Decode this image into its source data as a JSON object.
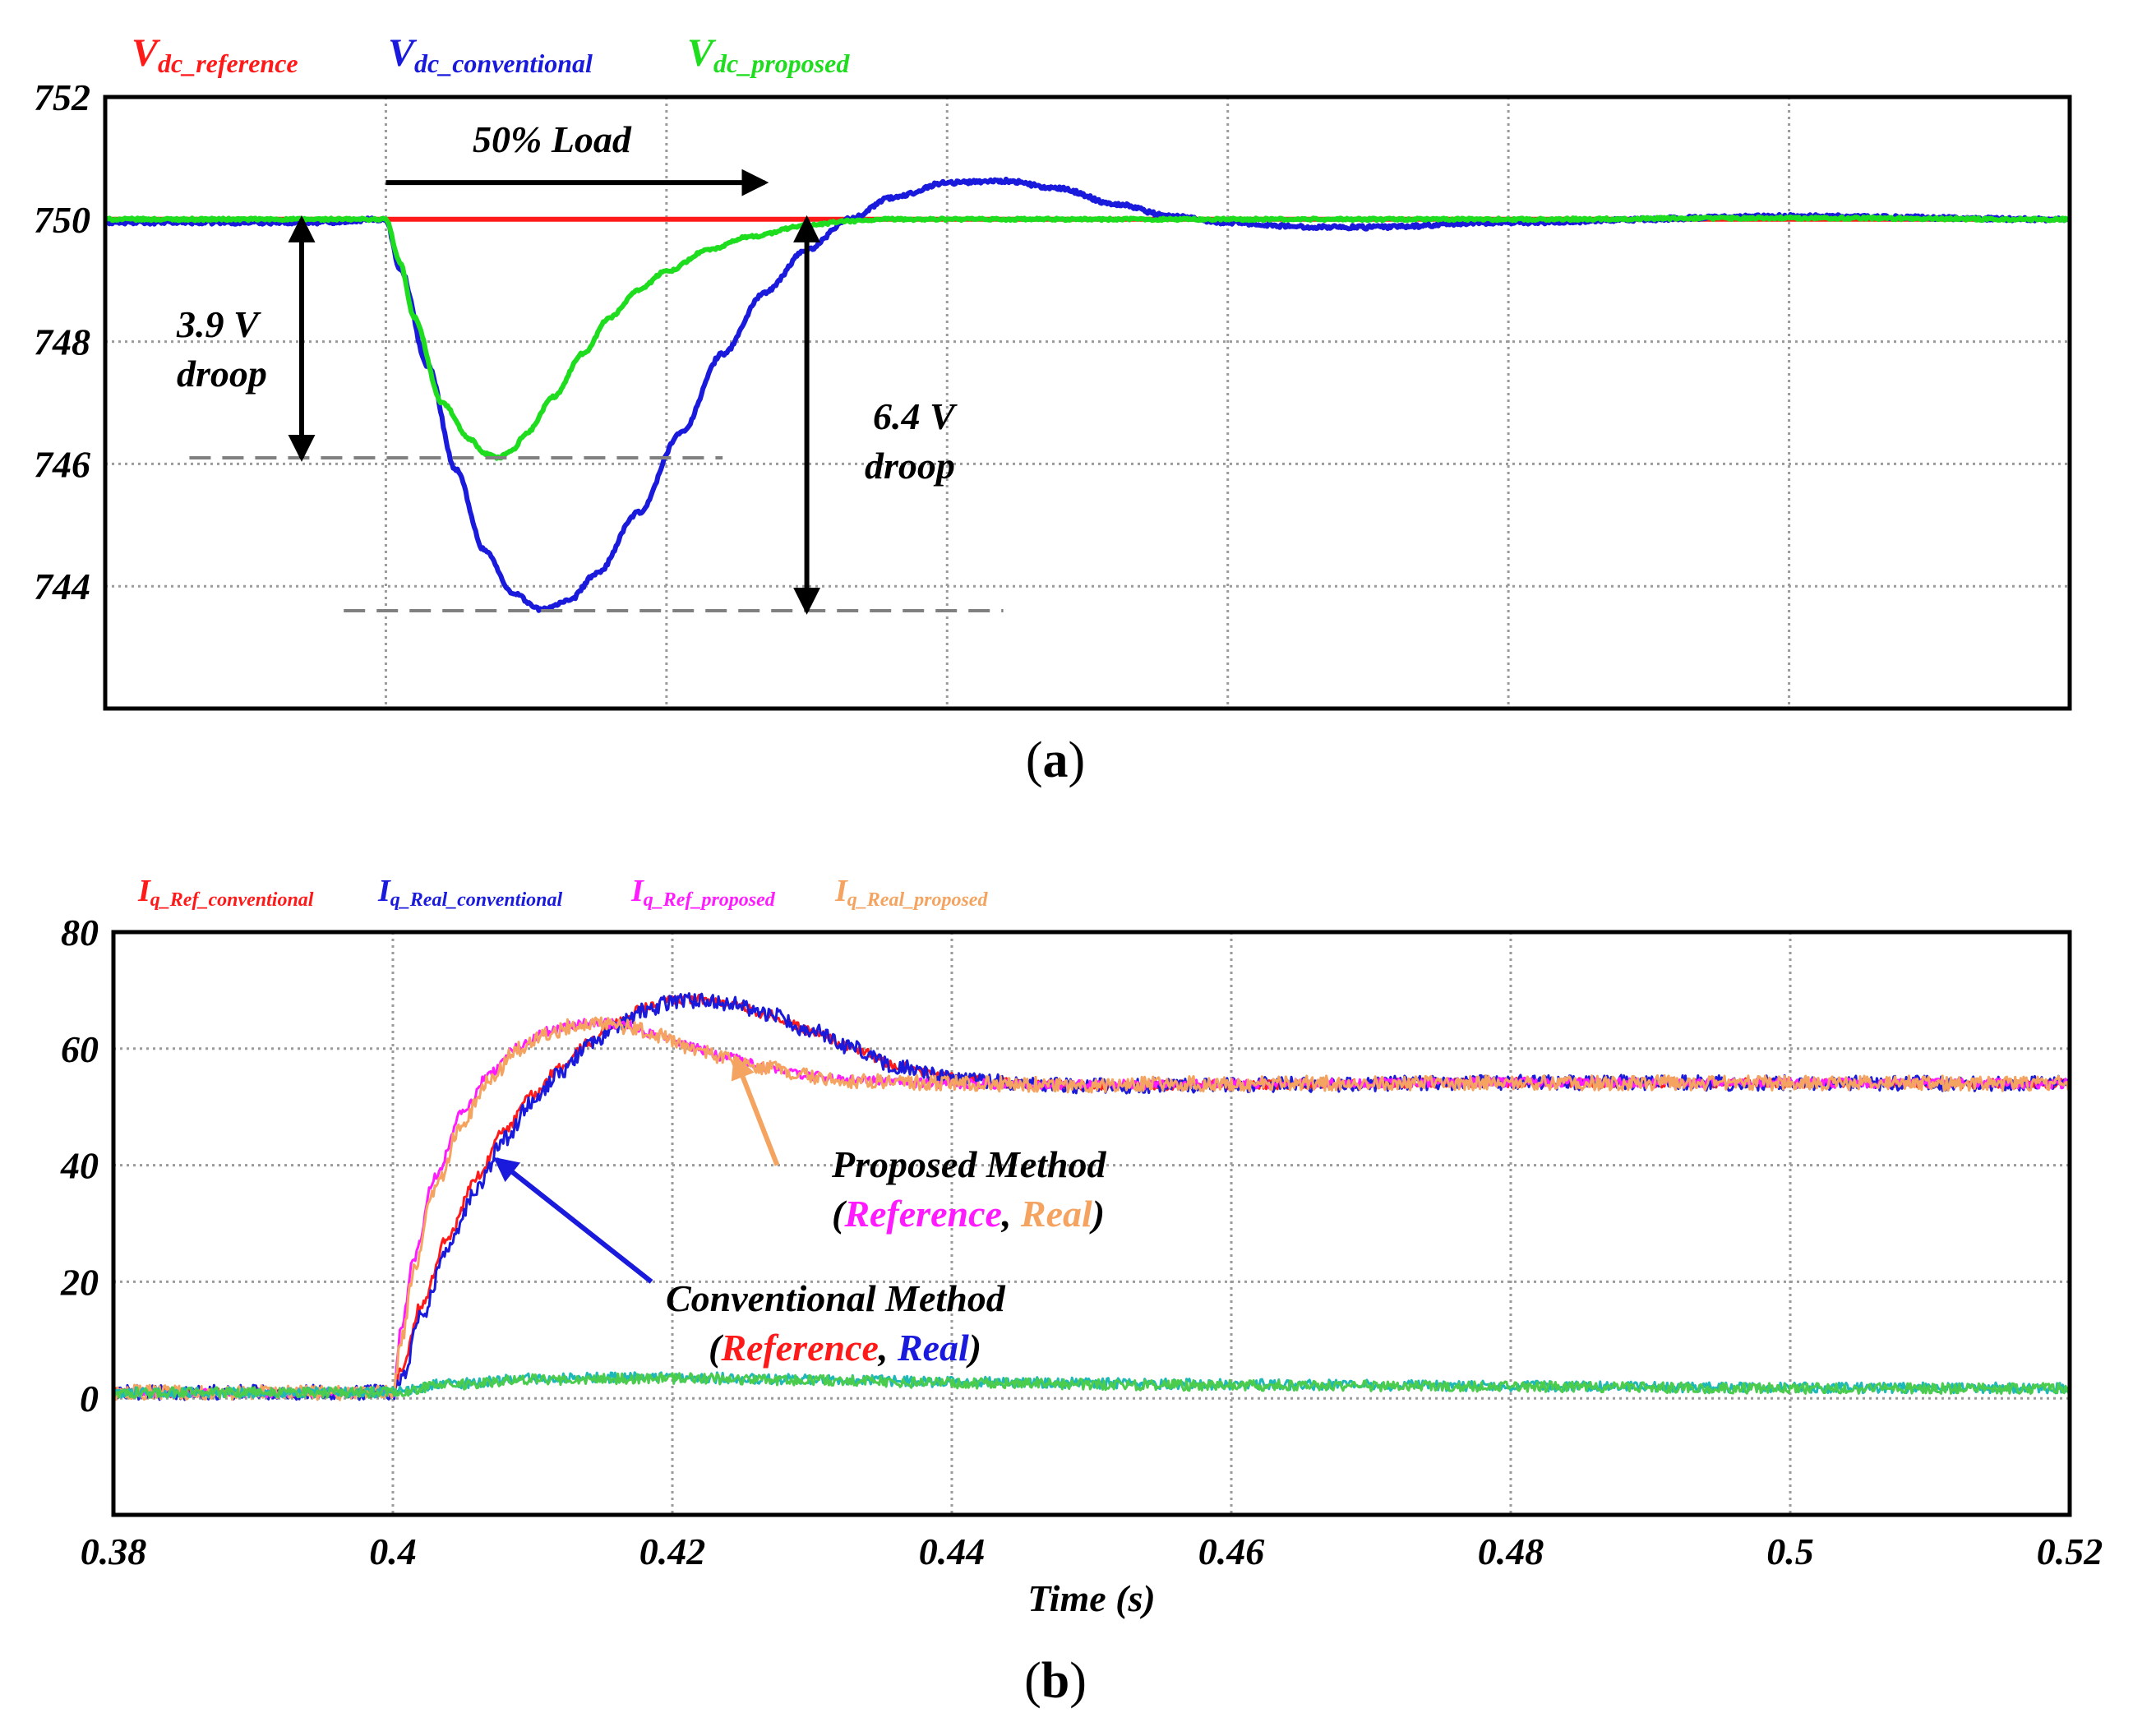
{
  "chart_data": [
    {
      "id": "a",
      "type": "line",
      "caption": "(a)",
      "xlim": [
        0.38,
        0.52
      ],
      "ylim": [
        742.0,
        752.0
      ],
      "y_ticks": [
        {
          "value": 752,
          "label": "752"
        },
        {
          "value": 750,
          "label": "750"
        },
        {
          "value": 748,
          "label": "748"
        },
        {
          "value": 746,
          "label": "746"
        },
        {
          "value": 744,
          "label": "744"
        }
      ],
      "x_grid": [
        0.4,
        0.42,
        0.44,
        0.46,
        0.48,
        0.5
      ],
      "legend": [
        {
          "main": "V",
          "sub": "dc_reference",
          "color": "#ff1a1a"
        },
        {
          "main": "V",
          "sub": "dc_conventional",
          "color": "#1a1adc"
        },
        {
          "main": "V",
          "sub": "dc_proposed",
          "color": "#1edc1e"
        }
      ],
      "series": [
        {
          "name": "Vdc_reference",
          "color": "#ff1a1a",
          "noise": 0,
          "x": [
            0.38,
            0.52
          ],
          "y": [
            750.0,
            750.0
          ]
        },
        {
          "name": "Vdc_conventional",
          "color": "#1a1adc",
          "noise": 0.03,
          "x": [
            0.38,
            0.395,
            0.4,
            0.401,
            0.403,
            0.405,
            0.407,
            0.409,
            0.411,
            0.413,
            0.415,
            0.418,
            0.421,
            0.424,
            0.427,
            0.43,
            0.433,
            0.436,
            0.44,
            0.444,
            0.448,
            0.452,
            0.456,
            0.46,
            0.465,
            0.47,
            0.48,
            0.5,
            0.52
          ],
          "y": [
            749.95,
            749.95,
            750.0,
            749.2,
            747.6,
            745.9,
            744.6,
            743.9,
            743.62,
            743.75,
            744.2,
            745.2,
            746.5,
            747.8,
            748.8,
            749.5,
            750.0,
            750.35,
            750.6,
            750.63,
            750.5,
            750.25,
            750.05,
            749.95,
            749.88,
            749.87,
            749.95,
            750.05,
            750.0
          ]
        },
        {
          "name": "Vdc_proposed",
          "color": "#1edc1e",
          "noise": 0.02,
          "x": [
            0.38,
            0.395,
            0.4,
            0.401,
            0.402,
            0.404,
            0.406,
            0.407,
            0.408,
            0.409,
            0.41,
            0.412,
            0.414,
            0.416,
            0.418,
            0.42,
            0.423,
            0.426,
            0.43,
            0.433,
            0.436,
            0.44,
            0.45,
            0.46,
            0.48,
            0.5,
            0.52
          ],
          "y": [
            750.0,
            750.0,
            750.0,
            749.3,
            748.4,
            747.0,
            746.4,
            746.17,
            746.1,
            746.22,
            746.5,
            747.1,
            747.8,
            748.4,
            748.85,
            749.15,
            749.5,
            749.72,
            749.9,
            749.97,
            750.0,
            750.0,
            750.0,
            750.0,
            750.0,
            750.02,
            750.0
          ]
        }
      ],
      "annotations": {
        "load_label": "50% Load",
        "droop1_value": "3.9 V",
        "droop1_word": "droop",
        "droop2_value": "6.4 V",
        "droop2_word": "droop",
        "load_arrow": {
          "x0": 0.4,
          "x1": 0.427,
          "y": 750.6
        },
        "droop1_arrow": {
          "x": 0.394,
          "y_top": 750.0,
          "y_bottom": 746.1
        },
        "droop2_arrow": {
          "x": 0.43,
          "y_top": 750.0,
          "y_bottom": 743.6
        },
        "droop1_dashed": {
          "x0": 0.386,
          "x1": 0.424,
          "y": 746.1
        },
        "droop2_dashed": {
          "x0": 0.397,
          "x1": 0.444,
          "y": 743.6
        }
      }
    },
    {
      "id": "b",
      "type": "line",
      "caption": "(b)",
      "xlabel": "Time (s)",
      "xlim": [
        0.38,
        0.52
      ],
      "ylim": [
        -20,
        80
      ],
      "x_ticks": [
        {
          "value": 0.38,
          "label": "0.38"
        },
        {
          "value": 0.4,
          "label": "0.4"
        },
        {
          "value": 0.42,
          "label": "0.42"
        },
        {
          "value": 0.44,
          "label": "0.44"
        },
        {
          "value": 0.46,
          "label": "0.46"
        },
        {
          "value": 0.48,
          "label": "0.48"
        },
        {
          "value": 0.5,
          "label": "0.5"
        },
        {
          "value": 0.52,
          "label": "0.52"
        }
      ],
      "y_ticks": [
        {
          "value": 80,
          "label": "80"
        },
        {
          "value": 60,
          "label": "60"
        },
        {
          "value": 40,
          "label": "40"
        },
        {
          "value": 20,
          "label": "20"
        },
        {
          "value": 0,
          "label": "0"
        }
      ],
      "legend": [
        {
          "main": "I",
          "sub": "q_Ref_conventional",
          "color": "#ff1a1a"
        },
        {
          "main": "I",
          "sub": "q_Real_conventional",
          "color": "#1a1adc"
        },
        {
          "main": "I",
          "sub": "q_Ref_proposed",
          "color": "#ff1aff"
        },
        {
          "main": "I",
          "sub": "q_Real_proposed",
          "color": "#f4a460"
        }
      ],
      "series": [
        {
          "name": "Iq_Ref_conventional",
          "color": "#ff1a1a",
          "noise": 0.8,
          "x": [
            0.38,
            0.4,
            0.4006,
            0.402,
            0.404,
            0.406,
            0.408,
            0.41,
            0.412,
            0.414,
            0.416,
            0.418,
            0.42,
            0.422,
            0.424,
            0.427,
            0.43,
            0.433,
            0.436,
            0.44,
            0.445,
            0.45,
            0.46,
            0.48,
            0.5,
            0.52
          ],
          "y": [
            1,
            1,
            5,
            16,
            28,
            38,
            46,
            52,
            57,
            61,
            64.5,
            67,
            68.3,
            68.5,
            67.8,
            65.8,
            63,
            60,
            57,
            55,
            54,
            53.6,
            53.8,
            54.2,
            54.1,
            54
          ]
        },
        {
          "name": "Iq_Real_conventional",
          "color": "#1a1adc",
          "noise": 1.3,
          "x": [
            0.38,
            0.4,
            0.4006,
            0.402,
            0.404,
            0.406,
            0.408,
            0.41,
            0.412,
            0.414,
            0.416,
            0.418,
            0.42,
            0.422,
            0.424,
            0.427,
            0.43,
            0.433,
            0.436,
            0.44,
            0.445,
            0.45,
            0.46,
            0.48,
            0.5,
            0.52
          ],
          "y": [
            1,
            1,
            3,
            14,
            26,
            36,
            44.5,
            51,
            56,
            60.5,
            64,
            66.5,
            68,
            68.3,
            67.7,
            65.8,
            63,
            60,
            57,
            55,
            54,
            53.6,
            53.8,
            54.2,
            54.1,
            54
          ]
        },
        {
          "name": "Iq_Ref_proposed",
          "color": "#ff1aff",
          "noise": 0.8,
          "x": [
            0.38,
            0.4,
            0.4006,
            0.4015,
            0.403,
            0.405,
            0.407,
            0.409,
            0.411,
            0.413,
            0.415,
            0.417,
            0.419,
            0.421,
            0.424,
            0.427,
            0.43,
            0.433,
            0.436,
            0.44,
            0.45,
            0.46,
            0.48,
            0.5,
            0.52
          ],
          "y": [
            1,
            1,
            12,
            24,
            38,
            49,
            56,
            60.5,
            63,
            64.2,
            64.4,
            63.8,
            62.3,
            60.5,
            58.5,
            56.7,
            55.3,
            54.6,
            54.2,
            54,
            53.8,
            54,
            54.2,
            54.1,
            54
          ]
        },
        {
          "name": "Iq_Real_proposed",
          "color": "#f4a460",
          "noise": 1.3,
          "x": [
            0.38,
            0.4,
            0.4006,
            0.4015,
            0.403,
            0.405,
            0.407,
            0.409,
            0.411,
            0.413,
            0.415,
            0.417,
            0.419,
            0.421,
            0.424,
            0.427,
            0.43,
            0.433,
            0.436,
            0.44,
            0.45,
            0.46,
            0.48,
            0.5,
            0.52
          ],
          "y": [
            1,
            1,
            10,
            22,
            36,
            47.5,
            55,
            60,
            62.7,
            64,
            64.3,
            63.7,
            62.2,
            60.4,
            58.4,
            56.6,
            55.2,
            54.5,
            54.2,
            54,
            53.8,
            54,
            54.2,
            54.1,
            54
          ]
        },
        {
          "name": "Id_conventional",
          "color": "#1fb8b8",
          "noise": 0.9,
          "x": [
            0.38,
            0.4,
            0.404,
            0.41,
            0.42,
            0.43,
            0.44,
            0.46,
            0.48,
            0.5,
            0.52
          ],
          "y": [
            1,
            1,
            2.5,
            3.4,
            3.6,
            3.3,
            2.8,
            2.4,
            2.1,
            1.8,
            1.8
          ]
        },
        {
          "name": "Id_proposed",
          "color": "#4ccc4c",
          "noise": 0.9,
          "x": [
            0.38,
            0.4,
            0.404,
            0.41,
            0.42,
            0.43,
            0.44,
            0.46,
            0.48,
            0.5,
            0.52
          ],
          "y": [
            1,
            1,
            2.3,
            3.2,
            3.4,
            3.1,
            2.6,
            2.2,
            2.0,
            1.7,
            1.7
          ]
        }
      ],
      "annotations": {
        "proposed_title": "Proposed Method",
        "proposed_ref_label": "Reference",
        "proposed_real_label": "Real",
        "proposed_ref_color": "#ff1aff",
        "proposed_real_color": "#f4a460",
        "proposed_arrow_color": "#f4a460",
        "conventional_title": "Conventional Method",
        "conventional_ref_label": "Reference",
        "conventional_real_label": "Real",
        "conventional_ref_color": "#ff1a1a",
        "conventional_real_color": "#1a1adc",
        "conventional_arrow_color": "#1a1adc",
        "proposed_arrow": {
          "x0": 0.4275,
          "y0": 40,
          "x1": 0.4245,
          "y1": 58.5
        },
        "conventional_arrow": {
          "x0": 0.4185,
          "y0": 20,
          "x1": 0.4074,
          "y1": 41
        }
      }
    }
  ]
}
